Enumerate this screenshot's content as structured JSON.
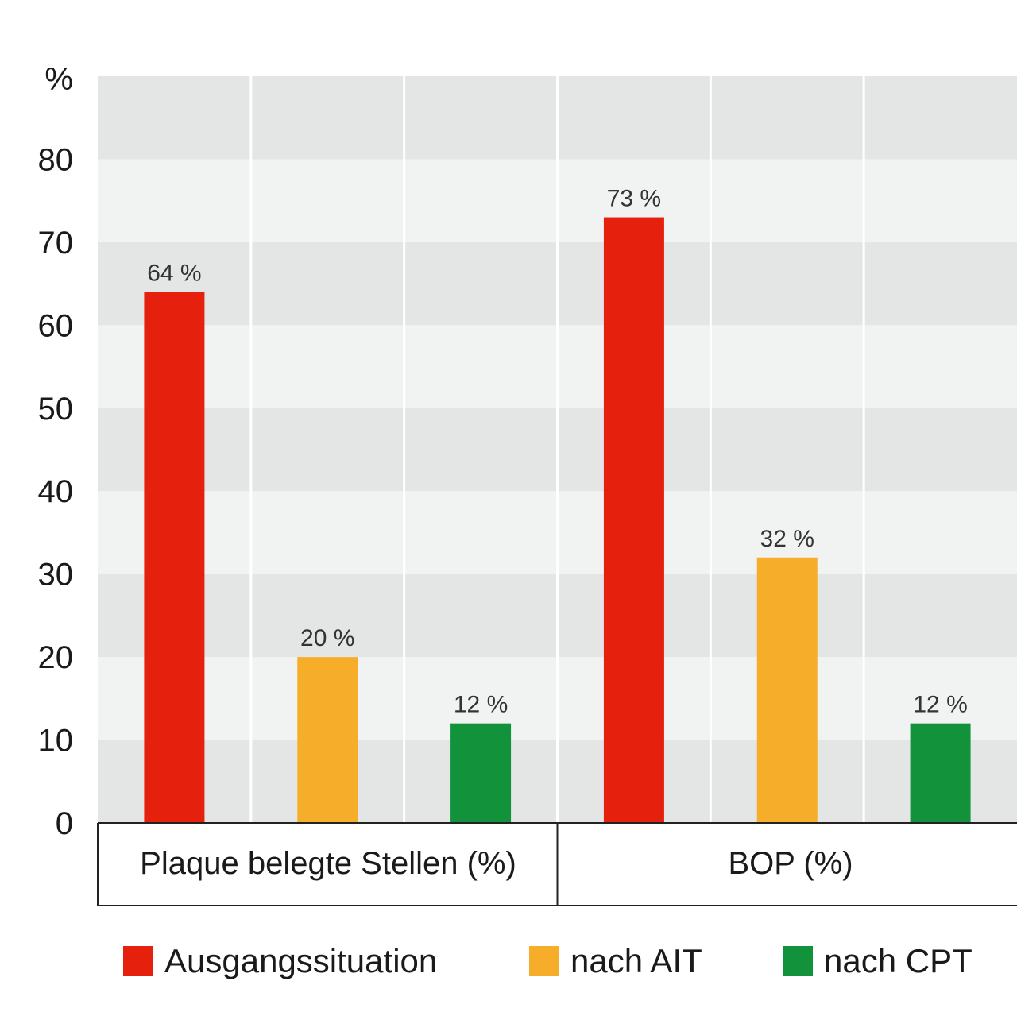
{
  "chart_data": {
    "type": "bar",
    "y_unit_label": "%",
    "ylim": [
      0,
      90
    ],
    "yticks": [
      0,
      10,
      20,
      30,
      40,
      50,
      60,
      70,
      80
    ],
    "categories": [
      "Plaque belegte Stellen (%)",
      "BOP (%)"
    ],
    "series": [
      {
        "name": "Ausgangssituation",
        "color": "#e5200c",
        "values": [
          64,
          73
        ],
        "labels": [
          "64 %",
          "73 %"
        ]
      },
      {
        "name": "nach AIT",
        "color": "#f6ae2a",
        "values": [
          20,
          32
        ],
        "labels": [
          "20 %",
          "32 %"
        ]
      },
      {
        "name": "nach CPT",
        "color": "#13923c",
        "values": [
          12,
          12
        ],
        "labels": [
          "12 %",
          "12 %"
        ]
      }
    ],
    "band_colors": [
      "#e4e5e5",
      "#f1f2f2"
    ],
    "grid": true,
    "legend_position": "bottom"
  }
}
